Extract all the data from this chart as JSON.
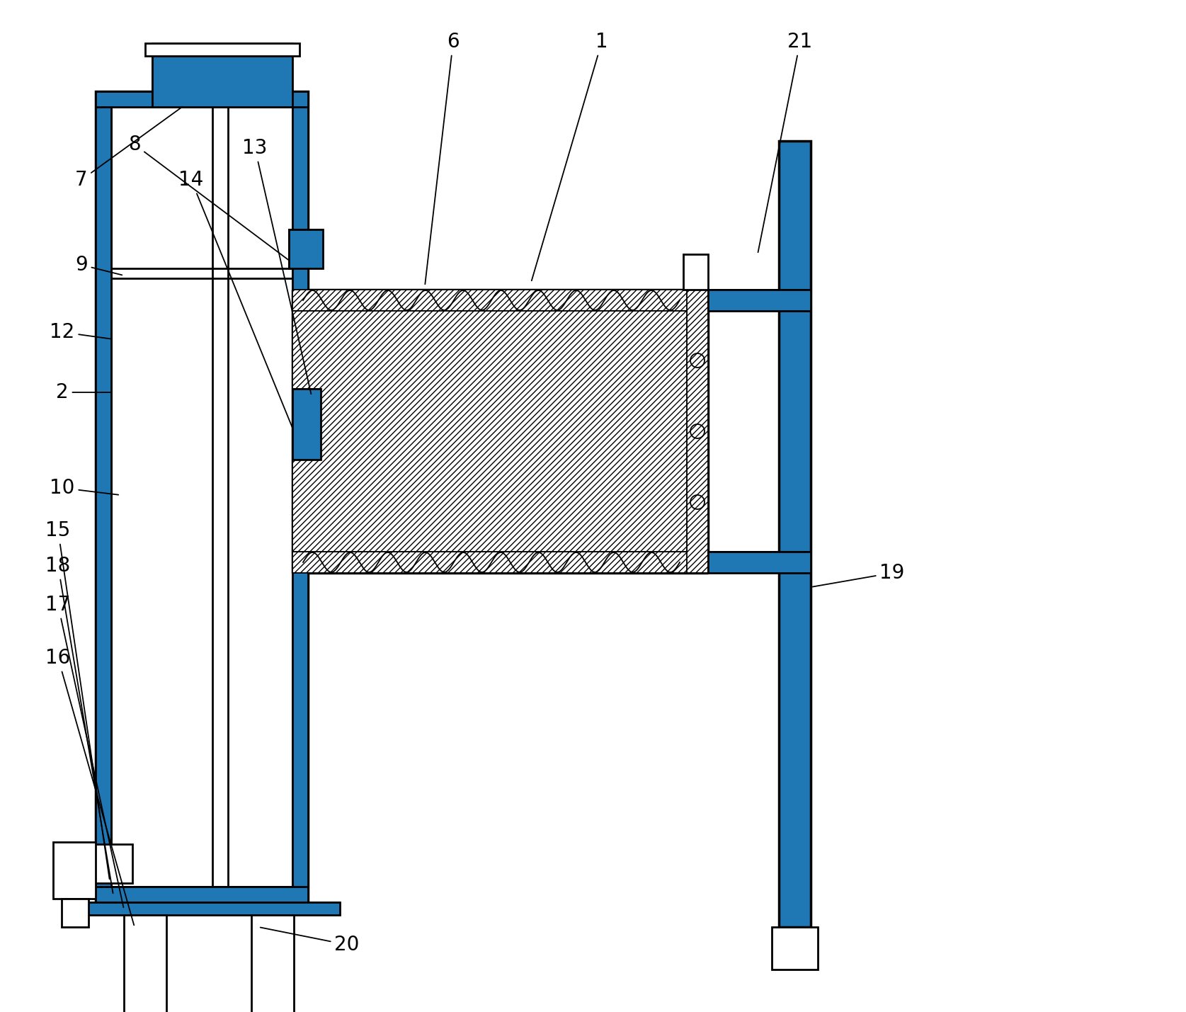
{
  "bg_color": "#ffffff",
  "line_color": "#000000",
  "lw": 2.0,
  "lw_thin": 1.3,
  "lw_thick": 2.5
}
